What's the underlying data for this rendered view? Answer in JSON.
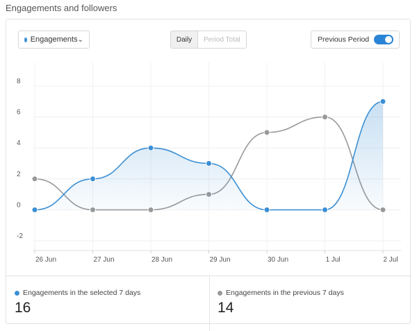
{
  "section": {
    "title": "Engagements and followers"
  },
  "controls": {
    "metric_dropdown": {
      "label": "Engagements",
      "color": "#3b8fd4"
    },
    "segments": [
      "Daily",
      "Period Total"
    ],
    "active_segment": "Daily",
    "previous_period": {
      "label": "Previous Period",
      "enabled": true,
      "color": "#2a84d6"
    }
  },
  "chart_data": {
    "type": "line",
    "x": [
      "26 Jun",
      "27 Jun",
      "28 Jun",
      "29 Jun",
      "30 Jun",
      "1 Jul",
      "2 Jul"
    ],
    "ylim": [
      -2,
      8
    ],
    "yticks": [
      -2,
      0,
      2,
      4,
      6,
      8
    ],
    "grid": true,
    "series": [
      {
        "values": [
          0,
          2,
          4,
          3,
          0,
          0,
          7
        ],
        "color": "#3b8fd4",
        "area": true
      },
      {
        "values": [
          2,
          0,
          0,
          1,
          5,
          6,
          0
        ],
        "color": "#999999",
        "area": false
      }
    ]
  },
  "stats": {
    "current": {
      "label": "Engagements in the selected 7 days",
      "value": "16"
    },
    "previous": {
      "label": "Engagements in the previous 7 days",
      "value": "14"
    }
  }
}
